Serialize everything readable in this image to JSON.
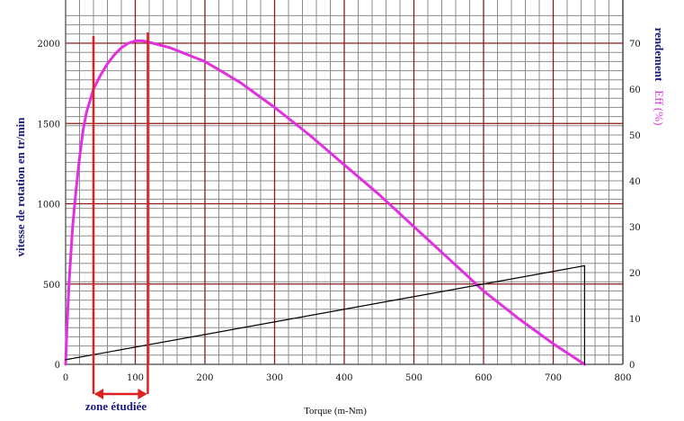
{
  "chart_data": {
    "type": "line",
    "xlabel": "Torque (m-Nm)",
    "ylabel_left": "vitesse de rotation en tr/min",
    "ylabel_right_prefix": "rendement",
    "ylabel_right_suffix": "Eff (%)",
    "annotation": "zone étudiée",
    "xlim": [
      0,
      800
    ],
    "ylim_left": [
      0,
      2000
    ],
    "ylim_right": [
      0,
      70
    ],
    "x_ticks": [
      0,
      100,
      200,
      300,
      400,
      500,
      600,
      700,
      800
    ],
    "y_left_ticks": [
      0,
      500,
      1000,
      1500,
      2000
    ],
    "y_right_ticks": [
      0,
      10,
      20,
      30,
      40,
      50,
      60,
      70
    ],
    "grid": true,
    "zone": [
      40,
      118
    ],
    "colors": {
      "efficiency": "#e030e0",
      "current": "#000000",
      "zone": "#e02020",
      "grid_major": "#8b1a1a",
      "grid_minor": "#8c8c8c",
      "axis_label": "#1a1a80"
    },
    "series": [
      {
        "axis": "right",
        "color": "#e030e0",
        "points": [
          [
            0,
            0
          ],
          [
            2,
            8
          ],
          [
            5,
            18
          ],
          [
            10,
            30
          ],
          [
            15,
            38
          ],
          [
            20,
            45
          ],
          [
            25,
            51
          ],
          [
            30,
            55
          ],
          [
            40,
            60
          ],
          [
            50,
            63
          ],
          [
            60,
            65.5
          ],
          [
            70,
            67.5
          ],
          [
            80,
            69
          ],
          [
            90,
            70
          ],
          [
            100,
            70.5
          ],
          [
            110,
            70.5
          ],
          [
            120,
            70.2
          ],
          [
            150,
            69
          ],
          [
            200,
            66
          ],
          [
            250,
            61.5
          ],
          [
            300,
            56
          ],
          [
            350,
            50
          ],
          [
            400,
            43.5
          ],
          [
            450,
            37
          ],
          [
            500,
            30
          ],
          [
            550,
            23
          ],
          [
            600,
            16
          ],
          [
            650,
            10
          ],
          [
            700,
            4.5
          ],
          [
            745,
            0
          ]
        ]
      },
      {
        "axis": "right",
        "color": "#000000",
        "points": [
          [
            0,
            1
          ],
          [
            745,
            21.5
          ],
          [
            745,
            0
          ]
        ]
      }
    ]
  }
}
